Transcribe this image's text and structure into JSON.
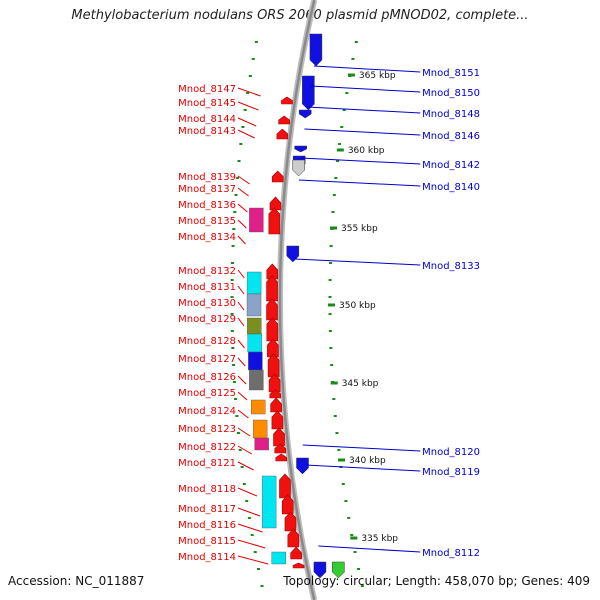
{
  "title": "Methylobacterium nodulans ORS 2060 plasmid pMNOD02, complete...",
  "accession": "Accession: NC_011887",
  "topology": "Topology: circular; Length: 458,070 bp; Genes: 409",
  "colors": {
    "backbone": "#8a8a8a",
    "tick": "#1a8a1a",
    "reverse_label": "#e00000",
    "forward_label": "#0000cc",
    "cog_cyan": "#00e5f0",
    "cog_steel": "#8aa3c9",
    "cog_olive": "#7a8f1e",
    "cog_blue": "#1010e0",
    "cog_gray": "#6e6e6e",
    "cog_orange": "#ff8c00",
    "cog_magenta": "#e0208a",
    "cog_lightgray": "#cccccc",
    "cog_green": "#33cc33"
  },
  "scale_labels": [
    "365 kbp",
    "360 kbp",
    "355 kbp",
    "350 kbp",
    "345 kbp",
    "340 kbp",
    "335 kbp"
  ],
  "reverse_genes": [
    "Mnod_8147",
    "Mnod_8145",
    "Mnod_8144",
    "Mnod_8143",
    "Mnod_8139",
    "Mnod_8137",
    "Mnod_8136",
    "Mnod_8135",
    "Mnod_8134",
    "Mnod_8132",
    "Mnod_8131",
    "Mnod_8130",
    "Mnod_8129",
    "Mnod_8128",
    "Mnod_8127",
    "Mnod_8126",
    "Mnod_8125",
    "Mnod_8124",
    "Mnod_8123",
    "Mnod_8122",
    "Mnod_8121",
    "Mnod_8118",
    "Mnod_8117",
    "Mnod_8116",
    "Mnod_8115",
    "Mnod_8114"
  ],
  "forward_genes": [
    "Mnod_8151",
    "Mnod_8150",
    "Mnod_8148",
    "Mnod_8146",
    "Mnod_8142",
    "Mnod_8140",
    "Mnod_8133",
    "Mnod_8120",
    "Mnod_8119",
    "Mnod_8112"
  ]
}
